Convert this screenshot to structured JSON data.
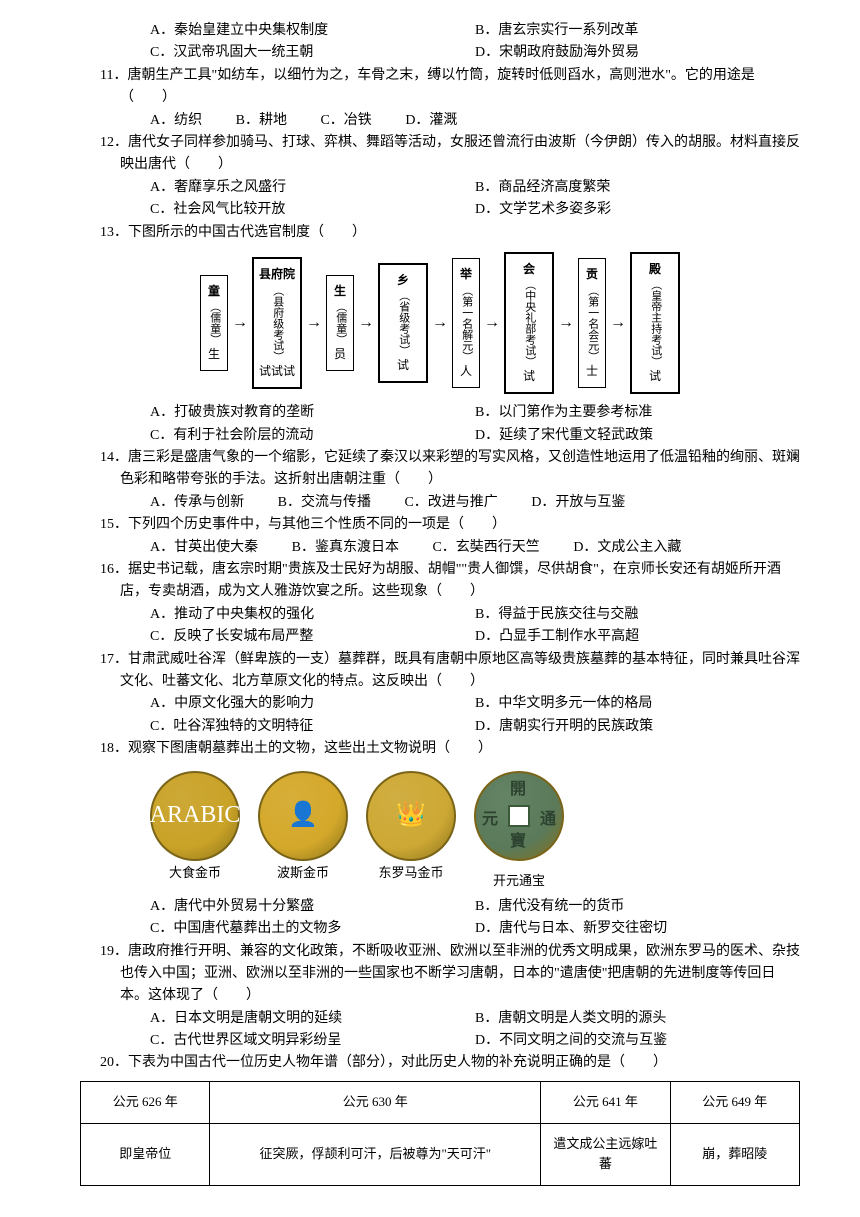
{
  "preOptions": {
    "A": "A．秦始皇建立中央集权制度",
    "B": "B．唐玄宗实行一系列改革",
    "C": "C．汉武帝巩固大一统王朝",
    "D": "D．宋朝政府鼓励海外贸易"
  },
  "q11": {
    "stem": "11．唐朝生产工具\"如纺车，以细竹为之，车骨之末，缚以竹筒，旋转时低则舀水，高则泄水\"。它的用途是（　　）",
    "A": "A．纺织",
    "B": "B．耕地",
    "C": "C．冶铁",
    "D": "D．灌溉"
  },
  "q12": {
    "stem": "12．唐代女子同样参加骑马、打球、弈棋、舞蹈等活动，女服还曾流行由波斯（今伊朗）传入的胡服。材料直接反映出唐代（　　）",
    "A": "A．奢靡享乐之风盛行",
    "B": "B．商品经济高度繁荣",
    "C": "C．社会风气比较开放",
    "D": "D．文学艺术多姿多彩"
  },
  "q13": {
    "stem": "13．下图所示的中国古代选官制度（　　）",
    "A": "A．打破贵族对教育的垄断",
    "B": "B．以门第作为主要参考标准",
    "C": "C．有利于社会阶层的流动",
    "D": "D．延续了宋代重文轻武政策",
    "diagram": {
      "boxes": [
        {
          "top": "童",
          "mid": "（儒童）",
          "bot": "生",
          "type": "thin"
        },
        {
          "top": "县府院",
          "mid": "（县府级考试）",
          "bot": "试试试",
          "type": "bold"
        },
        {
          "top": "生",
          "mid": "（儒童）",
          "bot": "员",
          "type": "thin"
        },
        {
          "top": "乡",
          "mid": "（省级考试）",
          "bot": "试",
          "type": "bold"
        },
        {
          "top": "举",
          "mid": "（第一名解元）",
          "bot": "人",
          "type": "thin"
        },
        {
          "top": "会",
          "mid": "（中央礼部考试）",
          "bot": "试",
          "type": "bold"
        },
        {
          "top": "贡",
          "mid": "（第一名会元）",
          "bot": "士",
          "type": "thin"
        },
        {
          "top": "殿",
          "mid": "（皇帝主持考试）",
          "bot": "试",
          "type": "bold"
        }
      ]
    }
  },
  "q14": {
    "stem": "14．唐三彩是盛唐气象的一个缩影，它延续了秦汉以来彩塑的写实风格，又创造性地运用了低温铅釉的绚丽、斑斓色彩和略带夸张的手法。这折射出唐朝注重（　　）",
    "A": "A．传承与创新",
    "B": "B．交流与传播",
    "C": "C．改进与推广",
    "D": "D．开放与互鉴"
  },
  "q15": {
    "stem": "15．下列四个历史事件中，与其他三个性质不同的一项是（　　）",
    "A": "A．甘英出使大秦",
    "B": "B．鉴真东渡日本",
    "C": "C．玄奘西行天竺",
    "D": "D．文成公主入藏"
  },
  "q16": {
    "stem": "16．据史书记载，唐玄宗时期\"贵族及士民好为胡服、胡帽\"\"贵人御馔，尽供胡食\"，在京师长安还有胡姬所开酒店，专卖胡酒，成为文人雅游饮宴之所。这些现象（　　）",
    "A": "A．推动了中央集权的强化",
    "B": "B．得益于民族交往与交融",
    "C": "C．反映了长安城布局严整",
    "D": "D．凸显手工制作水平高超"
  },
  "q17": {
    "stem": "17．甘肃武威吐谷浑（鲜卑族的一支）墓葬群，既具有唐朝中原地区高等级贵族墓葬的基本特征，同时兼具吐谷浑文化、吐蕃文化、北方草原文化的特点。这反映出（　　）",
    "A": "A．中原文化强大的影响力",
    "B": "B．中华文明多元一体的格局",
    "C": "C．吐谷浑独特的文明特征",
    "D": "D．唐朝实行开明的民族政策"
  },
  "q18": {
    "stem": "18．观察下图唐朝墓葬出土的文物，这些出土文物说明（　　）",
    "coins": [
      {
        "caption": "大食金币",
        "bg": "#c9a227",
        "text": "ARABIC"
      },
      {
        "caption": "波斯金币",
        "bg": "#d4a82a",
        "text": "👤"
      },
      {
        "caption": "东罗马金币",
        "bg": "#cda834",
        "text": "👑"
      },
      {
        "caption": "开元通宝",
        "bg": "#5a7a5a",
        "text": "開元通寶",
        "hole": true
      }
    ],
    "A": "A．唐代中外贸易十分繁盛",
    "B": "B．唐代没有统一的货币",
    "C": "C．中国唐代墓葬出土的文物多",
    "D": "D．唐代与日本、新罗交往密切"
  },
  "q19": {
    "stem": "19．唐政府推行开明、兼容的文化政策，不断吸收亚洲、欧洲以至非洲的优秀文明成果，欧洲东罗马的医术、杂技也传入中国；亚洲、欧洲以至非洲的一些国家也不断学习唐朝，日本的\"遣唐使\"把唐朝的先进制度等传回日本。这体现了（　　）",
    "A": "A．日本文明是唐朝文明的延续",
    "B": "B．唐朝文明是人类文明的源头",
    "C": "C．古代世界区域文明异彩纷呈",
    "D": "D．不同文明之间的交流与互鉴"
  },
  "q20": {
    "stem": "20．下表为中国古代一位历史人物年谱（部分），对此历史人物的补充说明正确的是（　　）",
    "table": {
      "headers": [
        "公元 626 年",
        "公元 630 年",
        "公元 641 年",
        "公元 649 年"
      ],
      "rows": [
        "即皇帝位",
        "征突厥，俘颉利可汗，后被尊为\"天可汗\"",
        "遣文成公主远嫁吐蕃",
        "崩，葬昭陵"
      ]
    }
  }
}
